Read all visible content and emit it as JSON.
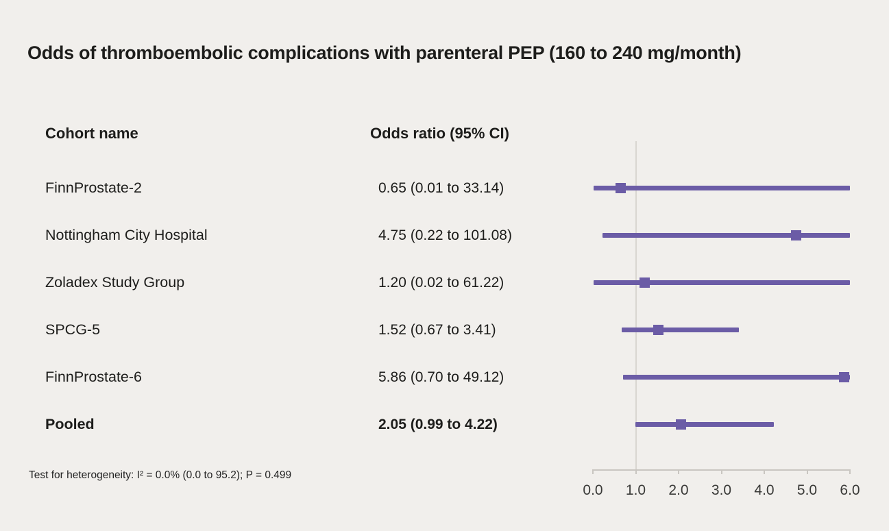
{
  "title": "Odds of thromboembolic complications with parenteral PEP (160 to 240 mg/month)",
  "columns": {
    "cohort": "Cohort name",
    "odds_ratio": "Odds ratio (95% CI)"
  },
  "footnote": "Test for heterogeneity: I² = 0.0% (0.0 to 95.2); P = 0.499",
  "colors": {
    "accent": "#6b5ca6",
    "background": "#f1efec",
    "axis": "#c9c6c1",
    "reference_line": "#d9d6d1",
    "text": "#1d1d1b"
  },
  "chart_data": {
    "type": "forest",
    "title": "Odds of thromboembolic complications with parenteral PEP (160 to 240 mg/month)",
    "xlim": [
      0.0,
      6.0
    ],
    "reference_value": 1.0,
    "x_ticks": [
      "0.0",
      "1.0",
      "2.0",
      "3.0",
      "4.0",
      "5.0",
      "6.0"
    ],
    "x_tick_values": [
      0,
      1,
      2,
      3,
      4,
      5,
      6
    ],
    "grid": false,
    "rows": [
      {
        "label": "FinnProstate-2",
        "or_text": "0.65 (0.01 to 33.14)",
        "estimate": 0.65,
        "ci_low": 0.01,
        "ci_high": 33.14,
        "bold": false
      },
      {
        "label": "Nottingham City Hospital",
        "or_text": "4.75 (0.22 to 101.08)",
        "estimate": 4.75,
        "ci_low": 0.22,
        "ci_high": 101.08,
        "bold": false
      },
      {
        "label": "Zoladex Study Group",
        "or_text": "1.20 (0.02 to 61.22)",
        "estimate": 1.2,
        "ci_low": 0.02,
        "ci_high": 61.22,
        "bold": false
      },
      {
        "label": "SPCG-5",
        "or_text": "1.52 (0.67 to 3.41)",
        "estimate": 1.52,
        "ci_low": 0.67,
        "ci_high": 3.41,
        "bold": false
      },
      {
        "label": "FinnProstate-6",
        "or_text": "5.86 (0.70 to 49.12)",
        "estimate": 5.86,
        "ci_low": 0.7,
        "ci_high": 49.12,
        "bold": false
      },
      {
        "label": "Pooled",
        "or_text": "2.05 (0.99 to 4.22)",
        "estimate": 2.05,
        "ci_low": 0.99,
        "ci_high": 4.22,
        "bold": true
      }
    ]
  }
}
